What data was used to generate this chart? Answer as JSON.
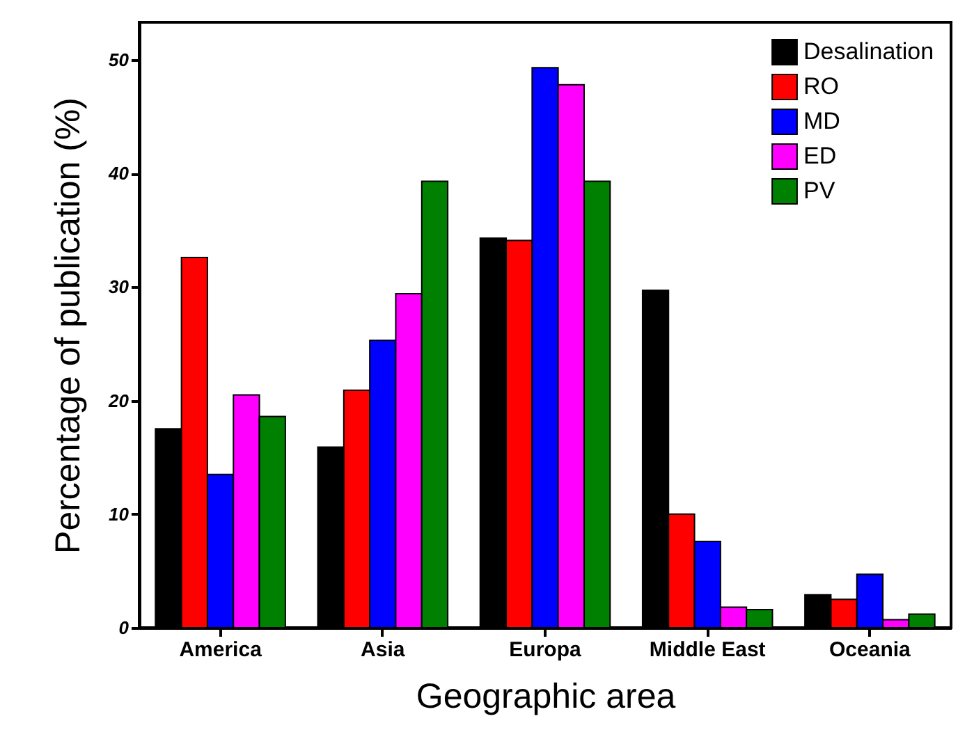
{
  "chart_data": {
    "type": "bar",
    "xlabel": "Geographic area",
    "ylabel": "Percentage of publication (%)",
    "categories": [
      "America",
      "Asia",
      "Europa",
      "Middle East",
      "Oceania"
    ],
    "series": [
      {
        "name": "Desalination",
        "color": "#000000",
        "values": [
          17.5,
          15.9,
          34.3,
          29.7,
          2.9
        ]
      },
      {
        "name": "RO",
        "color": "#ff0000",
        "values": [
          32.6,
          20.9,
          34.1,
          10.0,
          2.5
        ]
      },
      {
        "name": "MD",
        "color": "#0000ff",
        "values": [
          13.5,
          25.3,
          49.3,
          7.6,
          4.7
        ]
      },
      {
        "name": "ED",
        "color": "#ff00ff",
        "values": [
          20.5,
          29.4,
          47.8,
          1.8,
          0.7
        ]
      },
      {
        "name": "PV",
        "color": "#008000",
        "values": [
          18.6,
          39.3,
          39.3,
          1.6,
          1.2
        ]
      }
    ],
    "ylim": [
      0,
      53.3
    ],
    "yticks": [
      0,
      10,
      20,
      30,
      40,
      50
    ],
    "grid": false,
    "legend": "top right"
  }
}
